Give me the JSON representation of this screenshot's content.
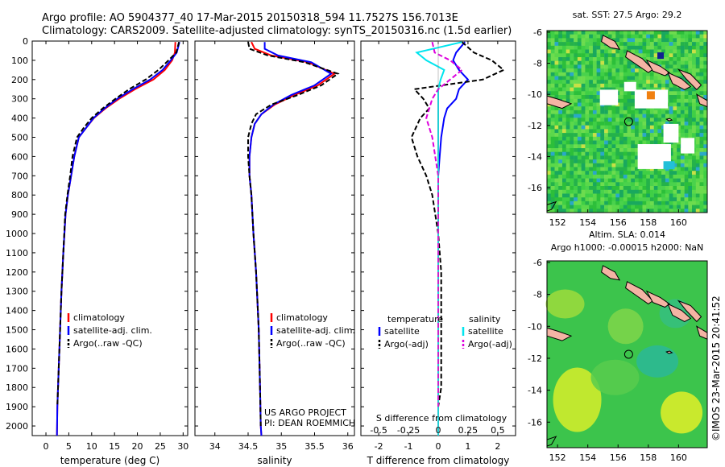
{
  "header": {
    "line1": "Argo profile: AO 5904377_40 17-Mar-2015 20150318_594 11.7527S 156.7013E",
    "line2": "Climatology: CARS2009. Satellite-adjusted climatology: synTS_20150316.nc (1.5d earlier)"
  },
  "side_text": "©IMOS 23-Mar-2015 20:41:52",
  "colors": {
    "climatology": "#ff0000",
    "satellite": "#0000ff",
    "argo": "#000000",
    "sat_sal": "#00e5ee",
    "argo_sal": "#dd00dd",
    "frame": "#000000"
  },
  "chart_data": [
    {
      "type": "line",
      "title": "",
      "xlabel": "temperature (deg C)",
      "ylabel": "",
      "xlim": [
        -3,
        31
      ],
      "ylim": [
        2050,
        0
      ],
      "xticks": [
        0,
        5,
        10,
        15,
        20,
        25,
        30
      ],
      "yticks": [
        0,
        100,
        200,
        300,
        400,
        500,
        600,
        700,
        800,
        900,
        1000,
        1100,
        1200,
        1300,
        1400,
        1500,
        1600,
        1700,
        1800,
        1900,
        2000
      ],
      "legend": [
        "climatology",
        "satellite-adj. clim.",
        "Argo(..raw -QC)"
      ],
      "series": [
        {
          "name": "climatology",
          "color": "#ff0000",
          "dash": "",
          "x": [
            28.3,
            28.2,
            27.6,
            26.0,
            23.5,
            19.5,
            16.0,
            13.0,
            10.5,
            8.8,
            7.2,
            6.2,
            5.5,
            4.8,
            4.3,
            3.8,
            3.4,
            3.1,
            2.8,
            2.5,
            2.4
          ],
          "y": [
            5,
            60,
            100,
            150,
            200,
            250,
            300,
            350,
            400,
            450,
            500,
            600,
            700,
            800,
            900,
            1100,
            1300,
            1500,
            1700,
            1900,
            2050
          ]
        },
        {
          "name": "satellite-adj. clim.",
          "color": "#0000ff",
          "dash": "",
          "x": [
            29.2,
            28.6,
            27.3,
            25.5,
            22.8,
            19.0,
            15.6,
            12.8,
            10.4,
            8.8,
            7.2,
            6.2,
            5.5,
            4.8,
            4.3,
            3.8,
            3.4,
            3.1,
            2.8,
            2.5,
            2.4
          ],
          "y": [
            5,
            60,
            100,
            150,
            200,
            250,
            300,
            350,
            400,
            450,
            500,
            600,
            700,
            800,
            900,
            1100,
            1300,
            1500,
            1700,
            1900,
            2050
          ]
        },
        {
          "name": "Argo(..raw -QC)",
          "color": "#000000",
          "dash": "6,3",
          "x": [
            29.1,
            28.5,
            26.8,
            24.6,
            21.8,
            18.2,
            15.2,
            12.4,
            10.0,
            8.3,
            6.8,
            5.8,
            5.3,
            4.7,
            4.2,
            3.8,
            3.4,
            3.1,
            2.8,
            2.5
          ],
          "y": [
            5,
            60,
            100,
            150,
            200,
            250,
            300,
            350,
            400,
            450,
            500,
            600,
            700,
            800,
            900,
            1100,
            1300,
            1500,
            1700,
            1900
          ]
        }
      ]
    },
    {
      "type": "line",
      "title": "",
      "xlabel": "salinity",
      "ylabel": "",
      "xlim": [
        33.7,
        36.1
      ],
      "ylim": [
        2050,
        0
      ],
      "xticks": [
        34,
        34.5,
        35,
        35.5,
        36
      ],
      "legend": [
        "climatology",
        "satellite-adj. clim.",
        "Argo(..raw -QC)"
      ],
      "series": [
        {
          "name": "climatology",
          "color": "#ff0000",
          "dash": "",
          "x": [
            34.55,
            34.6,
            34.85,
            35.4,
            35.8,
            35.55,
            35.2,
            34.9,
            34.7,
            34.6,
            34.55,
            34.52,
            34.52,
            34.55,
            34.58,
            34.62,
            34.66,
            34.68,
            34.69,
            34.7
          ],
          "y": [
            5,
            40,
            75,
            110,
            170,
            230,
            280,
            330,
            380,
            430,
            500,
            600,
            700,
            800,
            1000,
            1200,
            1500,
            1800,
            2000,
            2050
          ]
        },
        {
          "name": "satellite-adj. clim.",
          "color": "#0000ff",
          "dash": "",
          "x": [
            34.75,
            34.75,
            34.95,
            35.45,
            35.75,
            35.5,
            35.15,
            34.88,
            34.7,
            34.6,
            34.55,
            34.52,
            34.52,
            34.55,
            34.58,
            34.62,
            34.66,
            34.68,
            34.69,
            34.7
          ],
          "y": [
            5,
            40,
            75,
            110,
            170,
            230,
            280,
            330,
            380,
            430,
            500,
            600,
            700,
            800,
            1000,
            1200,
            1500,
            1800,
            2000,
            2050
          ]
        },
        {
          "name": "Argo(..raw -QC)",
          "color": "#000000",
          "dash": "6,3",
          "x": [
            34.5,
            34.52,
            34.8,
            35.35,
            35.85,
            35.6,
            35.25,
            34.85,
            34.62,
            34.55,
            34.5,
            34.5,
            34.52,
            34.55,
            34.58,
            34.62,
            34.66,
            34.68,
            34.69
          ],
          "y": [
            5,
            40,
            75,
            110,
            170,
            230,
            280,
            330,
            380,
            430,
            500,
            600,
            700,
            800,
            1000,
            1200,
            1500,
            1800,
            2000
          ]
        }
      ],
      "annotation_lines": [
        "US ARGO PROJECT",
        "PI: DEAN ROEMMICH"
      ]
    },
    {
      "type": "line",
      "title": "",
      "xlabel": "T difference from climatology",
      "xlabel_top": "S difference from climatology",
      "ylabel": "",
      "xlim": [
        -2.6,
        2.6
      ],
      "ylim": [
        2050,
        0
      ],
      "xticks": [
        -2,
        -1,
        0,
        1,
        2
      ],
      "xticks_s": [
        -0.5,
        -0.25,
        0,
        0.25,
        0.5
      ],
      "xtick_labels_s": [
        "-0.5",
        "-0.25",
        "0",
        "0.25",
        "0.5"
      ],
      "legend_temperature": {
        "header": "temperature",
        "items": [
          "satellite",
          "Argo(-adj)"
        ]
      },
      "legend_salinity": {
        "header": "salinity",
        "items": [
          "satellite",
          "Argo(-adj)"
        ]
      },
      "series": [
        {
          "name": "temperature satellite",
          "color": "#0000ff",
          "dash": "",
          "x": [
            0.9,
            0.6,
            0.5,
            0.7,
            1.0,
            0.7,
            0.6,
            0.3,
            0.2,
            0.1,
            0.05,
            0.0,
            0.0,
            0.0,
            0.0,
            0.0,
            0.0,
            0.0,
            0.0
          ],
          "y": [
            5,
            60,
            100,
            150,
            200,
            250,
            300,
            350,
            400,
            500,
            600,
            700,
            800,
            1000,
            1200,
            1400,
            1600,
            1800,
            2050
          ]
        },
        {
          "name": "temperature Argo(-adj)",
          "color": "#000000",
          "dash": "6,3",
          "x": [
            0.8,
            1.2,
            1.8,
            2.2,
            1.5,
            -0.8,
            -0.5,
            -0.3,
            -0.6,
            -0.9,
            -0.7,
            -0.4,
            -0.2,
            0.0,
            0.1,
            0.1,
            0.1,
            0.1,
            0.0
          ],
          "y": [
            5,
            60,
            100,
            150,
            200,
            250,
            300,
            350,
            400,
            500,
            600,
            700,
            800,
            1000,
            1200,
            1400,
            1600,
            1800,
            1900
          ]
        },
        {
          "name": "salinity satellite",
          "color": "#00e5ee",
          "dash": "",
          "s": [
            0.2,
            -0.18,
            -0.1,
            0.05,
            0.02,
            0.0,
            0.0,
            0.0,
            0.0,
            0.0,
            0.0,
            0.0,
            0.0,
            0.0,
            0.0,
            0.0
          ],
          "y": [
            5,
            60,
            100,
            150,
            200,
            250,
            300,
            400,
            500,
            700,
            900,
            1100,
            1400,
            1700,
            1900,
            2050
          ]
        },
        {
          "name": "salinity Argo(-adj)",
          "color": "#dd00dd",
          "dash": "6,3",
          "s": [
            -0.05,
            -0.03,
            0.1,
            0.2,
            0.1,
            0.0,
            -0.05,
            -0.1,
            -0.05,
            0.0,
            0.0,
            0.0,
            0.0,
            0.0,
            0.0
          ],
          "y": [
            5,
            60,
            100,
            150,
            200,
            250,
            300,
            400,
            500,
            700,
            900,
            1100,
            1400,
            1700,
            1900
          ]
        }
      ]
    },
    {
      "type": "heatmap",
      "title": "sat. SST: 27.5 Argo: 29.2",
      "subtitle": "",
      "xlim": [
        151.3,
        161.9
      ],
      "ylim": [
        -17.6,
        -5.9
      ],
      "xticks": [
        152,
        154,
        156,
        158,
        160
      ],
      "yticks": [
        -6,
        -8,
        -10,
        -12,
        -14,
        -16
      ],
      "argo_lon": 156.7,
      "argo_lat": -11.75
    },
    {
      "type": "heatmap",
      "title": "Altim. SLA: 0.014",
      "subtitle": "Argo h1000: -0.00015 h2000: NaN",
      "xlim": [
        151.3,
        161.9
      ],
      "ylim": [
        -17.6,
        -5.9
      ],
      "xticks": [
        152,
        154,
        156,
        158,
        160
      ],
      "yticks": [
        -6,
        -8,
        -10,
        -12,
        -14,
        -16
      ],
      "argo_lon": 156.7,
      "argo_lat": -11.75
    }
  ]
}
